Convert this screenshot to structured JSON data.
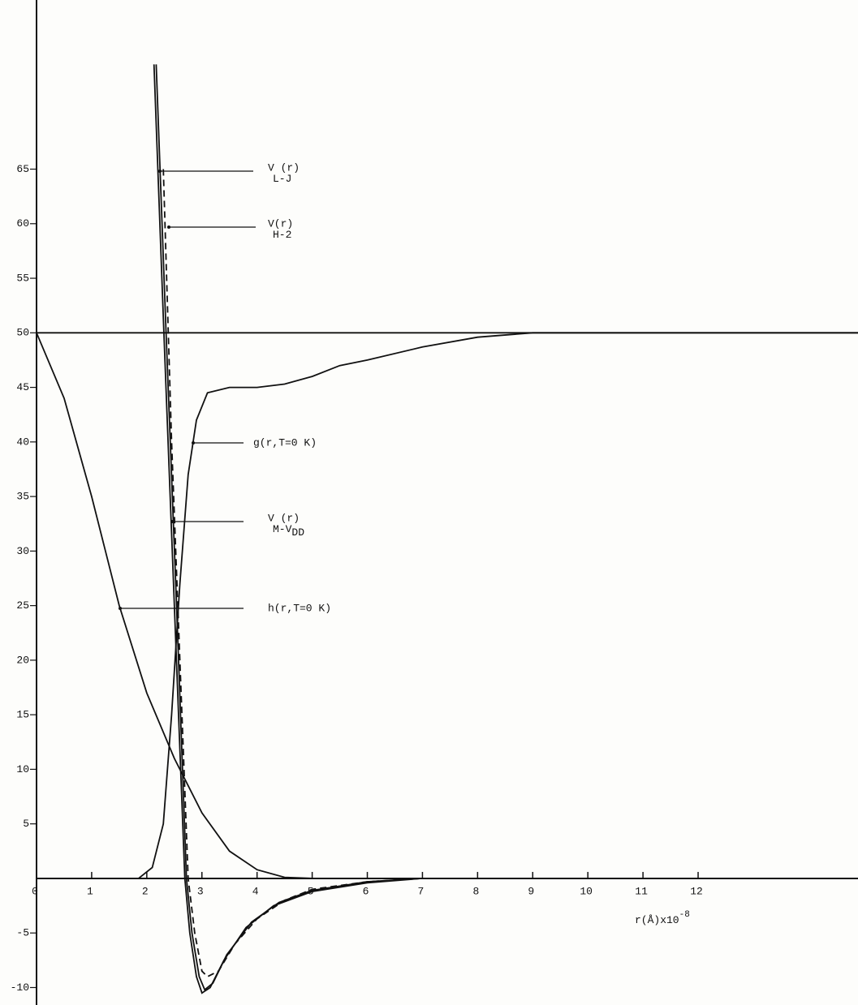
{
  "chart_data": {
    "type": "line",
    "xlim": [
      0,
      14.9
    ],
    "ylim": [
      -11.6,
      80.5
    ],
    "xticks": [
      0,
      1,
      2,
      3,
      4,
      5,
      6,
      7,
      8,
      9,
      10,
      11,
      12
    ],
    "yticks": [
      -10,
      -5,
      5,
      10,
      15,
      20,
      25,
      30,
      35,
      40,
      45,
      50,
      55,
      60,
      65
    ],
    "x_label": "r(Å)x10",
    "x_label_exp": "-8",
    "reference_line": 50,
    "color": "#111111",
    "series": [
      {
        "x": [
          2.13,
          2.31,
          2.5,
          2.69,
          2.78,
          2.9,
          3.0,
          3.15,
          3.4,
          3.8,
          4.3,
          5,
          6,
          7
        ],
        "values": [
          74.6,
          50,
          25,
          0,
          -5,
          -9,
          -10.5,
          -10,
          -7.5,
          -4.5,
          -2.5,
          -1.2,
          -0.4,
          0
        ],
        "style": "solid"
      },
      {
        "x": [
          2.17,
          2.35,
          2.54,
          2.72,
          2.82,
          2.95,
          3.05,
          3.2,
          3.45,
          3.9,
          4.4,
          5,
          6,
          7
        ],
        "values": [
          74.6,
          50,
          25,
          0,
          -5,
          -9,
          -10.2,
          -9.6,
          -7,
          -4,
          -2.2,
          -1.1,
          -0.3,
          0
        ],
        "style": "solid"
      },
      {
        "x": [
          2.3,
          2.45,
          2.6,
          2.75,
          2.87,
          3.0,
          3.1,
          3.3,
          3.6,
          4,
          4.5,
          5,
          6,
          7
        ],
        "values": [
          65,
          40,
          20,
          0,
          -5,
          -8.5,
          -9,
          -8.5,
          -6,
          -3.7,
          -2,
          -1,
          -0.3,
          0
        ],
        "style": "dashed"
      },
      {
        "x": [
          1.85,
          2.1,
          2.3,
          2.45,
          2.6,
          2.75,
          2.9,
          3.1,
          3.5,
          4,
          4.5,
          5,
          5.5,
          6,
          7,
          8,
          9,
          14.9
        ],
        "values": [
          0,
          1,
          5,
          15,
          27,
          37,
          42,
          44.5,
          45,
          45,
          45.3,
          46,
          47,
          47.5,
          48.7,
          49.6,
          50,
          50
        ],
        "style": "solid"
      },
      {
        "x": [
          0,
          0.5,
          1,
          1.5,
          2,
          2.5,
          3,
          3.5,
          4,
          4.5,
          5
        ],
        "values": [
          50,
          44,
          35,
          25,
          17,
          11,
          6,
          2.5,
          0.8,
          0.1,
          0
        ],
        "style": "solid"
      }
    ],
    "annotations": [
      {
        "text": "V (r)",
        "sub": "L-J"
      },
      {
        "text": "V(r)",
        "sub": "H-2"
      },
      {
        "text": "g(r,T=0 K)"
      },
      {
        "text": "V (r)",
        "sub": "M-V",
        "subsub": "DD"
      },
      {
        "text": "h(r,T=0 K)"
      }
    ]
  }
}
